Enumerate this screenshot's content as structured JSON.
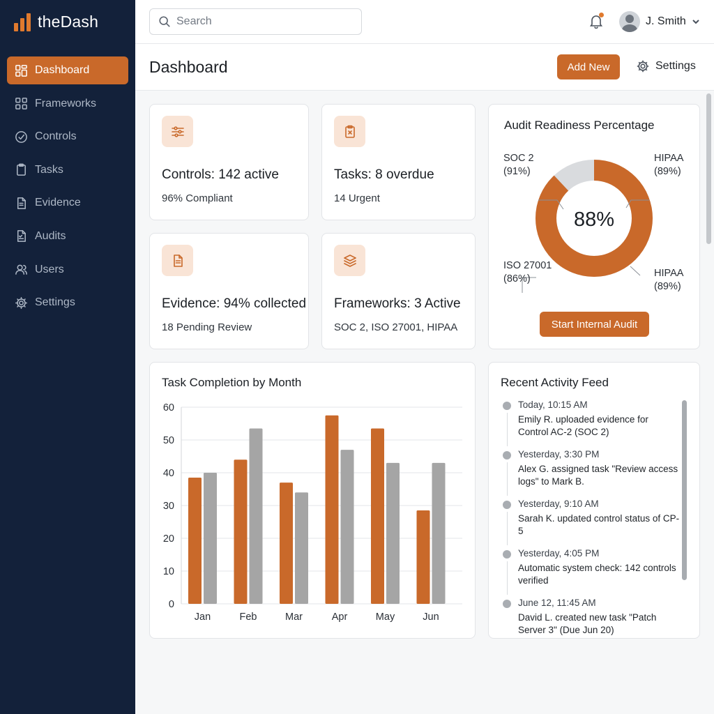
{
  "brand": {
    "name": "theDash"
  },
  "sidebar": {
    "items": [
      {
        "label": "Dashboard",
        "icon": "dashboard-icon",
        "active": true
      },
      {
        "label": "Frameworks",
        "icon": "grid-icon"
      },
      {
        "label": "Controls",
        "icon": "check-circle-icon"
      },
      {
        "label": "Tasks",
        "icon": "clipboard-icon"
      },
      {
        "label": "Evidence",
        "icon": "document-icon"
      },
      {
        "label": "Audits",
        "icon": "audit-icon"
      },
      {
        "label": "Users",
        "icon": "users-icon"
      },
      {
        "label": "Settings",
        "icon": "gear-icon"
      }
    ]
  },
  "topbar": {
    "search_placeholder": "Search",
    "notification_unread": true,
    "user_name": "J. Smith"
  },
  "header": {
    "title": "Dashboard",
    "add_new_label": "Add New",
    "settings_label": "Settings"
  },
  "stats": [
    {
      "title": "Controls: 142 active",
      "subtitle": "96% Compliant",
      "icon": "sliders-icon"
    },
    {
      "title": "Tasks: 8 overdue",
      "subtitle": "14 Urgent",
      "icon": "clipboard-x-icon"
    },
    {
      "title": "Evidence: 94% collected",
      "subtitle": "18 Pending Review",
      "icon": "document-icon"
    },
    {
      "title": "Frameworks: 3 Active",
      "subtitle": "SOC 2, ISO 27001, HIPAA",
      "icon": "layers-icon"
    }
  ],
  "audit": {
    "title": "Audit Readiness Percentage",
    "center_value": "88%",
    "labels": {
      "soc2": {
        "name": "SOC 2",
        "pct": "(91%)"
      },
      "hipaa_top": {
        "name": "HIPAA",
        "pct": "(89%)"
      },
      "iso": {
        "name": "ISO 27001",
        "pct": "(86%)"
      },
      "hipaa_bottom": {
        "name": "HIPAA",
        "pct": "(89%)"
      }
    },
    "readiness_fraction": 0.88,
    "button_label": "Start Internal Audit"
  },
  "chart_data": {
    "type": "bar",
    "title": "Task Completion by Month",
    "categories": [
      "Jan",
      "Feb",
      "Mar",
      "Apr",
      "May",
      "Jun"
    ],
    "series": [
      {
        "values": [
          38.5,
          44,
          37,
          57.5,
          53.5,
          28.5
        ],
        "color": "#c9692a"
      },
      {
        "values": [
          40,
          53.5,
          34,
          47,
          43,
          43
        ],
        "color": "#a5a5a5"
      }
    ],
    "yticks": [
      0,
      10,
      20,
      30,
      40,
      50,
      60
    ],
    "ylim": [
      0,
      60
    ],
    "grid": true
  },
  "activity": {
    "title": "Recent Activity Feed",
    "items": [
      {
        "time": "Today, 10:15 AM",
        "text": "Emily R. uploaded evidence for Control AC-2 (SOC 2)"
      },
      {
        "time": "Yesterday, 3:30 PM",
        "text": "Alex G. assigned task \"Review access logs\" to Mark B."
      },
      {
        "time": "Yesterday, 9:10 AM",
        "text": "Sarah K. updated control status of CP-5"
      },
      {
        "time": "Yesterday, 4:05 PM",
        "text": "Automatic system check: 142 controls verified"
      },
      {
        "time": "June 12, 11:45 AM",
        "text": "David L. created new task \"Patch Server 3\" (Due Jun 20)"
      }
    ]
  },
  "colors": {
    "accent": "#c9692a",
    "sidebar_bg": "#13213a",
    "secondary_bar": "#a5a5a5"
  }
}
